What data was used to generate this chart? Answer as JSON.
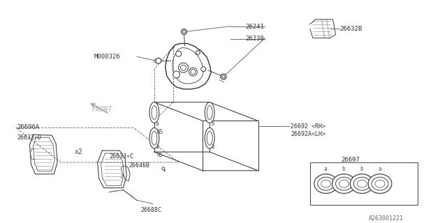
{
  "bg_color": "#ffffff",
  "line_color": "#333333",
  "footer_code": "A263001221",
  "front_label": "FRONT",
  "x2_label": "x2",
  "caliper_color": "#444444",
  "pad_color": "#555555",
  "label_color": "#666666"
}
